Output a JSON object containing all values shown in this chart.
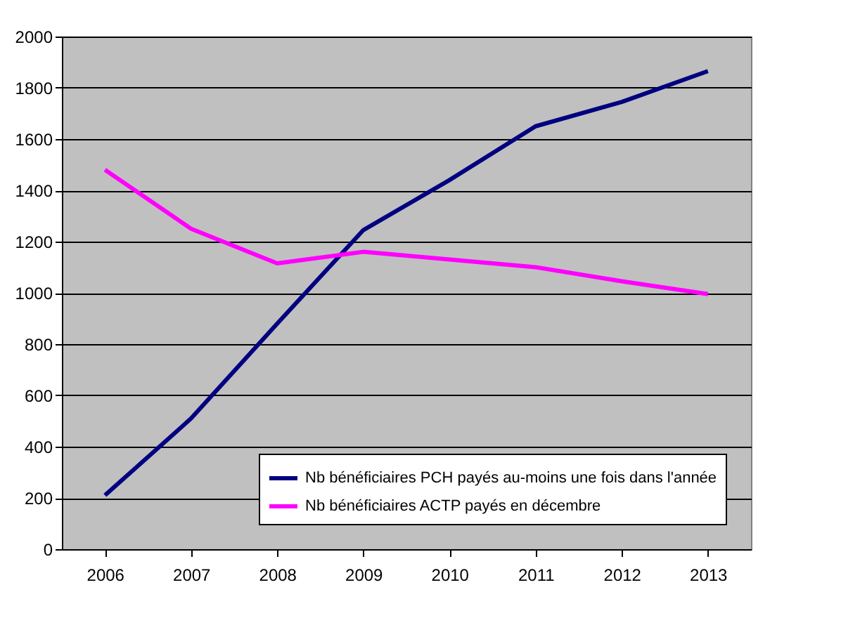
{
  "chart_data": {
    "type": "line",
    "categories": [
      "2006",
      "2007",
      "2008",
      "2009",
      "2010",
      "2011",
      "2012",
      "2013"
    ],
    "series": [
      {
        "name": "Nb bénéficiaires PCH payés au-moins une fois dans l'année",
        "color": "#000080",
        "values": [
          210,
          510,
          880,
          1245,
          1440,
          1650,
          1745,
          1865
        ]
      },
      {
        "name": "Nb bénéficiaires ACTP payés en décembre",
        "color": "#ff00ff",
        "values": [
          1480,
          1250,
          1115,
          1160,
          1130,
          1100,
          1045,
          995
        ]
      }
    ],
    "ylim": [
      0,
      2000
    ],
    "yticks": [
      0,
      200,
      400,
      600,
      800,
      1000,
      1200,
      1400,
      1600,
      1800,
      2000
    ],
    "grid": "y",
    "legend": "bottom right",
    "marker": "none",
    "line_style": "solid"
  }
}
